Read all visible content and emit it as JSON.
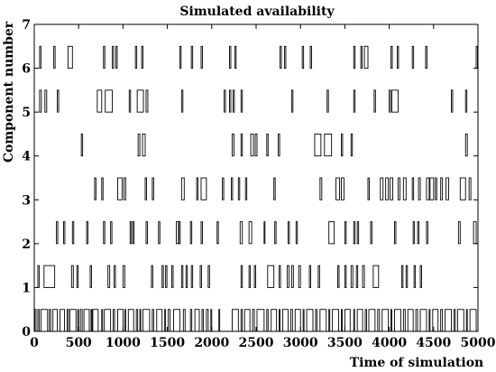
{
  "chart_data": {
    "type": "timeline",
    "title": "Simulated availability",
    "xlabel": "Time of simulation",
    "ylabel": "Component number",
    "xlim": [
      0,
      5000
    ],
    "ylim": [
      0,
      7
    ],
    "xticks": [
      0,
      500,
      1000,
      1500,
      2000,
      2500,
      3000,
      3500,
      4000,
      4500,
      5000
    ],
    "yticks": [
      0,
      1,
      2,
      3,
      4,
      5,
      6,
      7
    ],
    "grid": false,
    "legend": "none",
    "pulse_height": 0.5,
    "color": "#000000",
    "series": [
      {
        "component": 0,
        "failures": [
          [
            5,
            20
          ],
          [
            40,
            55
          ],
          [
            75,
            150
          ],
          [
            170,
            185
          ],
          [
            210,
            260
          ],
          [
            290,
            340
          ],
          [
            370,
            385
          ],
          [
            400,
            470
          ],
          [
            490,
            500
          ],
          [
            520,
            540
          ],
          [
            560,
            620
          ],
          [
            640,
            650
          ],
          [
            660,
            720
          ],
          [
            760,
            770
          ],
          [
            790,
            860
          ],
          [
            890,
            905
          ],
          [
            940,
            1000
          ],
          [
            1020,
            1030
          ],
          [
            1060,
            1120
          ],
          [
            1150,
            1165
          ],
          [
            1190,
            1200
          ],
          [
            1225,
            1300
          ],
          [
            1330,
            1345
          ],
          [
            1380,
            1440
          ],
          [
            1470,
            1480
          ],
          [
            1510,
            1530
          ],
          [
            1570,
            1640
          ],
          [
            1680,
            1700
          ],
          [
            1760,
            1775
          ],
          [
            1810,
            1860
          ],
          [
            1890,
            1905
          ],
          [
            1940,
            1960
          ],
          [
            1990,
            2000
          ],
          [
            2080,
            2090
          ],
          [
            2230,
            2300
          ],
          [
            2330,
            2345
          ],
          [
            2370,
            2430
          ],
          [
            2460,
            2480
          ],
          [
            2510,
            2590
          ],
          [
            2620,
            2635
          ],
          [
            2670,
            2730
          ],
          [
            2760,
            2770
          ],
          [
            2800,
            2860
          ],
          [
            2890,
            2910
          ],
          [
            2940,
            3000
          ],
          [
            3030,
            3040
          ],
          [
            3070,
            3140
          ],
          [
            3170,
            3185
          ],
          [
            3220,
            3290
          ],
          [
            3320,
            3330
          ],
          [
            3360,
            3430
          ],
          [
            3460,
            3470
          ],
          [
            3500,
            3560
          ],
          [
            3600,
            3610
          ],
          [
            3640,
            3700
          ],
          [
            3730,
            3745
          ],
          [
            3770,
            3840
          ],
          [
            3870,
            3890
          ],
          [
            3920,
            3990
          ],
          [
            4020,
            4030
          ],
          [
            4060,
            4130
          ],
          [
            4160,
            4180
          ],
          [
            4210,
            4270
          ],
          [
            4300,
            4320
          ],
          [
            4350,
            4420
          ],
          [
            4450,
            4460
          ],
          [
            4490,
            4550
          ],
          [
            4580,
            4600
          ],
          [
            4630,
            4700
          ],
          [
            4730,
            4745
          ],
          [
            4770,
            4840
          ],
          [
            4870,
            4880
          ],
          [
            4910,
            4980
          ]
        ]
      },
      {
        "component": 1,
        "failures": [
          [
            40,
            55
          ],
          [
            110,
            230
          ],
          [
            420,
            440
          ],
          [
            480,
            495
          ],
          [
            630,
            645
          ],
          [
            830,
            850
          ],
          [
            900,
            915
          ],
          [
            1000,
            1020
          ],
          [
            1320,
            1335
          ],
          [
            1440,
            1455
          ],
          [
            1480,
            1495
          ],
          [
            1550,
            1565
          ],
          [
            1660,
            1675
          ],
          [
            1710,
            1725
          ],
          [
            1770,
            1785
          ],
          [
            1870,
            1885
          ],
          [
            1960,
            1975
          ],
          [
            2330,
            2345
          ],
          [
            2420,
            2435
          ],
          [
            2480,
            2495
          ],
          [
            2630,
            2700
          ],
          [
            2760,
            2775
          ],
          [
            2850,
            2870
          ],
          [
            2900,
            2920
          ],
          [
            2980,
            3000
          ],
          [
            3100,
            3115
          ],
          [
            3200,
            3215
          ],
          [
            3420,
            3435
          ],
          [
            3500,
            3515
          ],
          [
            3570,
            3590
          ],
          [
            3630,
            3645
          ],
          [
            3700,
            3720
          ],
          [
            3820,
            3880
          ],
          [
            4140,
            4155
          ],
          [
            4190,
            4205
          ],
          [
            4280,
            4295
          ],
          [
            4350,
            4365
          ]
        ]
      },
      {
        "component": 2,
        "failures": [
          [
            250,
            265
          ],
          [
            330,
            345
          ],
          [
            430,
            445
          ],
          [
            590,
            605
          ],
          [
            780,
            795
          ],
          [
            860,
            875
          ],
          [
            1080,
            1095
          ],
          [
            1110,
            1125
          ],
          [
            1260,
            1275
          ],
          [
            1400,
            1415
          ],
          [
            1600,
            1625
          ],
          [
            1630,
            1645
          ],
          [
            1760,
            1775
          ],
          [
            1880,
            1895
          ],
          [
            2060,
            2075
          ],
          [
            2320,
            2345
          ],
          [
            2420,
            2450
          ],
          [
            2590,
            2600
          ],
          [
            2710,
            2725
          ],
          [
            2860,
            2875
          ],
          [
            2950,
            2965
          ],
          [
            3320,
            3380
          ],
          [
            3500,
            3515
          ],
          [
            3600,
            3615
          ],
          [
            3640,
            3655
          ],
          [
            3790,
            3805
          ],
          [
            4060,
            4075
          ],
          [
            4270,
            4285
          ],
          [
            4320,
            4335
          ],
          [
            4420,
            4435
          ],
          [
            4780,
            4800
          ],
          [
            4950,
            4980
          ]
        ]
      },
      {
        "component": 3,
        "failures": [
          [
            680,
            695
          ],
          [
            760,
            775
          ],
          [
            940,
            990
          ],
          [
            1010,
            1030
          ],
          [
            1250,
            1265
          ],
          [
            1330,
            1345
          ],
          [
            1660,
            1690
          ],
          [
            1830,
            1845
          ],
          [
            1880,
            1940
          ],
          [
            2120,
            2135
          ],
          [
            2220,
            2235
          ],
          [
            2300,
            2315
          ],
          [
            2380,
            2395
          ],
          [
            2700,
            2715
          ],
          [
            3220,
            3240
          ],
          [
            3400,
            3440
          ],
          [
            3460,
            3490
          ],
          [
            3760,
            3775
          ],
          [
            3900,
            3930
          ],
          [
            3960,
            3990
          ],
          [
            4010,
            4040
          ],
          [
            4100,
            4120
          ],
          [
            4160,
            4190
          ],
          [
            4260,
            4275
          ],
          [
            4330,
            4350
          ],
          [
            4420,
            4450
          ],
          [
            4460,
            4500
          ],
          [
            4520,
            4535
          ],
          [
            4580,
            4600
          ],
          [
            4640,
            4670
          ],
          [
            4800,
            4860
          ],
          [
            4900,
            4920
          ]
        ]
      },
      {
        "component": 4,
        "failures": [
          [
            530,
            545
          ],
          [
            1170,
            1190
          ],
          [
            1220,
            1250
          ],
          [
            2230,
            2250
          ],
          [
            2330,
            2345
          ],
          [
            2440,
            2470
          ],
          [
            2490,
            2510
          ],
          [
            2620,
            2635
          ],
          [
            2750,
            2765
          ],
          [
            3160,
            3230
          ],
          [
            3270,
            3350
          ],
          [
            3460,
            3475
          ],
          [
            3570,
            3585
          ],
          [
            4860,
            4880
          ]
        ]
      },
      {
        "component": 5,
        "failures": [
          [
            60,
            80
          ],
          [
            120,
            140
          ],
          [
            260,
            275
          ],
          [
            710,
            760
          ],
          [
            800,
            880
          ],
          [
            1070,
            1085
          ],
          [
            1160,
            1230
          ],
          [
            1260,
            1280
          ],
          [
            1660,
            1675
          ],
          [
            2140,
            2155
          ],
          [
            2200,
            2215
          ],
          [
            2240,
            2255
          ],
          [
            2330,
            2345
          ],
          [
            2900,
            2915
          ],
          [
            3300,
            3315
          ],
          [
            3600,
            3615
          ],
          [
            3830,
            3845
          ],
          [
            4000,
            4015
          ],
          [
            4030,
            4100
          ],
          [
            4700,
            4715
          ],
          [
            4860,
            4875
          ]
        ]
      },
      {
        "component": 6,
        "failures": [
          [
            60,
            75
          ],
          [
            220,
            235
          ],
          [
            380,
            430
          ],
          [
            780,
            795
          ],
          [
            880,
            895
          ],
          [
            920,
            935
          ],
          [
            1140,
            1155
          ],
          [
            1210,
            1225
          ],
          [
            1640,
            1655
          ],
          [
            1770,
            1785
          ],
          [
            1880,
            1895
          ],
          [
            2200,
            2215
          ],
          [
            2260,
            2275
          ],
          [
            2770,
            2785
          ],
          [
            2820,
            2835
          ],
          [
            3020,
            3035
          ],
          [
            3110,
            3125
          ],
          [
            3600,
            3615
          ],
          [
            3680,
            3695
          ],
          [
            3720,
            3760
          ],
          [
            4020,
            4035
          ],
          [
            4090,
            4105
          ],
          [
            4260,
            4275
          ],
          [
            4410,
            4425
          ],
          [
            4980,
            4995
          ]
        ]
      }
    ]
  }
}
